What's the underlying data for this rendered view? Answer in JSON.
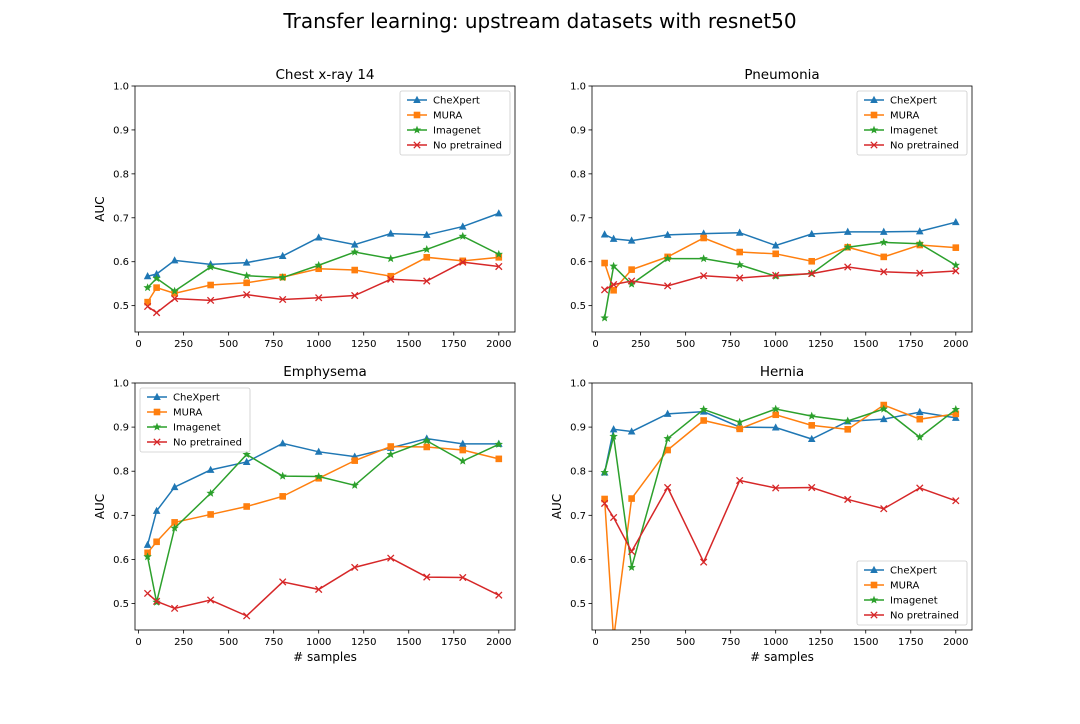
{
  "figure": {
    "title": "Transfer learning: upstream datasets with resnet50"
  },
  "colors": {
    "CheXpert": "#1f77b4",
    "MURA": "#ff7f0e",
    "Imagenet": "#2ca02c",
    "No pretrained": "#d62728"
  },
  "chart_data": [
    {
      "type": "line",
      "title": "Chest x-ray 14",
      "xlabel": "",
      "ylabel": "AUC",
      "xlim": [
        -20,
        2090
      ],
      "ylim": [
        0.44,
        1.0
      ],
      "xticks": [
        0,
        250,
        500,
        750,
        1000,
        1250,
        1500,
        1750,
        2000
      ],
      "yticks": [
        0.5,
        0.6,
        0.7,
        0.8,
        0.9,
        1.0
      ],
      "legend": "top-right",
      "x": [
        50,
        100,
        200,
        400,
        600,
        800,
        1000,
        1200,
        1400,
        1600,
        1800,
        2000
      ],
      "series": [
        {
          "name": "CheXpert",
          "marker": "triangle",
          "values": [
            0.567,
            0.572,
            0.603,
            0.594,
            0.598,
            0.613,
            0.655,
            0.639,
            0.664,
            0.661,
            0.68,
            0.71
          ]
        },
        {
          "name": "MURA",
          "marker": "square",
          "values": [
            0.508,
            0.541,
            0.528,
            0.547,
            0.552,
            0.565,
            0.584,
            0.581,
            0.567,
            0.61,
            0.602,
            0.61
          ]
        },
        {
          "name": "Imagenet",
          "marker": "star",
          "values": [
            0.541,
            0.562,
            0.533,
            0.588,
            0.568,
            0.564,
            0.592,
            0.622,
            0.607,
            0.628,
            0.658,
            0.617
          ]
        },
        {
          "name": "No pretrained",
          "marker": "x",
          "values": [
            0.498,
            0.484,
            0.516,
            0.512,
            0.525,
            0.514,
            0.518,
            0.523,
            0.56,
            0.556,
            0.599,
            0.589
          ]
        }
      ]
    },
    {
      "type": "line",
      "title": "Pneumonia",
      "xlabel": "",
      "ylabel": "",
      "xlim": [
        -20,
        2090
      ],
      "ylim": [
        0.44,
        1.0
      ],
      "xticks": [
        0,
        250,
        500,
        750,
        1000,
        1250,
        1500,
        1750,
        2000
      ],
      "yticks": [
        0.5,
        0.6,
        0.7,
        0.8,
        0.9,
        1.0
      ],
      "legend": "top-right",
      "x": [
        50,
        100,
        200,
        400,
        600,
        800,
        1000,
        1200,
        1400,
        1600,
        1800,
        2000
      ],
      "series": [
        {
          "name": "CheXpert",
          "marker": "triangle",
          "values": [
            0.662,
            0.652,
            0.648,
            0.661,
            0.664,
            0.666,
            0.637,
            0.663,
            0.668,
            0.668,
            0.669,
            0.69
          ]
        },
        {
          "name": "MURA",
          "marker": "square",
          "values": [
            0.597,
            0.535,
            0.582,
            0.611,
            0.654,
            0.622,
            0.618,
            0.601,
            0.633,
            0.611,
            0.638,
            0.632
          ]
        },
        {
          "name": "Imagenet",
          "marker": "star",
          "values": [
            0.472,
            0.59,
            0.549,
            0.607,
            0.607,
            0.593,
            0.567,
            0.573,
            0.633,
            0.644,
            0.641,
            0.592
          ]
        },
        {
          "name": "No pretrained",
          "marker": "x",
          "values": [
            0.536,
            0.548,
            0.556,
            0.545,
            0.568,
            0.563,
            0.569,
            0.573,
            0.588,
            0.577,
            0.574,
            0.579
          ]
        }
      ]
    },
    {
      "type": "line",
      "title": "Emphysema",
      "xlabel": "# samples",
      "ylabel": "AUC",
      "xlim": [
        -20,
        2090
      ],
      "ylim": [
        0.44,
        1.0
      ],
      "xticks": [
        0,
        250,
        500,
        750,
        1000,
        1250,
        1500,
        1750,
        2000
      ],
      "yticks": [
        0.5,
        0.6,
        0.7,
        0.8,
        0.9,
        1.0
      ],
      "legend": "top-left",
      "x": [
        50,
        100,
        200,
        400,
        600,
        800,
        1000,
        1200,
        1400,
        1600,
        1800,
        2000
      ],
      "series": [
        {
          "name": "CheXpert",
          "marker": "triangle",
          "values": [
            0.633,
            0.71,
            0.764,
            0.803,
            0.821,
            0.863,
            0.844,
            0.833,
            0.853,
            0.874,
            0.862,
            0.862
          ]
        },
        {
          "name": "MURA",
          "marker": "square",
          "values": [
            0.615,
            0.64,
            0.684,
            0.702,
            0.72,
            0.743,
            0.784,
            0.824,
            0.856,
            0.855,
            0.848,
            0.828
          ]
        },
        {
          "name": "Imagenet",
          "marker": "star",
          "values": [
            0.606,
            0.503,
            0.671,
            0.75,
            0.838,
            0.789,
            0.788,
            0.768,
            0.838,
            0.869,
            0.823,
            0.861
          ]
        },
        {
          "name": "No pretrained",
          "marker": "x",
          "values": [
            0.523,
            0.505,
            0.489,
            0.508,
            0.472,
            0.549,
            0.532,
            0.582,
            0.603,
            0.56,
            0.559,
            0.519
          ]
        }
      ]
    },
    {
      "type": "line",
      "title": "Hernia",
      "xlabel": "# samples",
      "ylabel": "AUC",
      "xlim": [
        -20,
        2090
      ],
      "ylim": [
        0.44,
        1.0
      ],
      "xticks": [
        0,
        250,
        500,
        750,
        1000,
        1250,
        1500,
        1750,
        2000
      ],
      "yticks": [
        0.5,
        0.6,
        0.7,
        0.8,
        0.9,
        1.0
      ],
      "legend": "bottom-right",
      "x": [
        50,
        100,
        200,
        400,
        600,
        800,
        1000,
        1200,
        1400,
        1600,
        1800,
        2000
      ],
      "series": [
        {
          "name": "CheXpert",
          "marker": "triangle",
          "values": [
            0.797,
            0.895,
            0.89,
            0.93,
            0.935,
            0.9,
            0.899,
            0.873,
            0.913,
            0.918,
            0.934,
            0.921
          ]
        },
        {
          "name": "MURA",
          "marker": "square",
          "values": [
            0.737,
            0.42,
            0.738,
            0.848,
            0.915,
            0.896,
            0.928,
            0.904,
            0.895,
            0.95,
            0.918,
            0.93
          ]
        },
        {
          "name": "Imagenet",
          "marker": "star",
          "values": [
            0.797,
            0.879,
            0.582,
            0.874,
            0.94,
            0.911,
            0.941,
            0.925,
            0.914,
            0.941,
            0.877,
            0.94
          ]
        },
        {
          "name": "No pretrained",
          "marker": "x",
          "values": [
            0.727,
            0.695,
            0.618,
            0.763,
            0.594,
            0.779,
            0.762,
            0.763,
            0.736,
            0.715,
            0.762,
            0.733
          ]
        }
      ]
    }
  ]
}
